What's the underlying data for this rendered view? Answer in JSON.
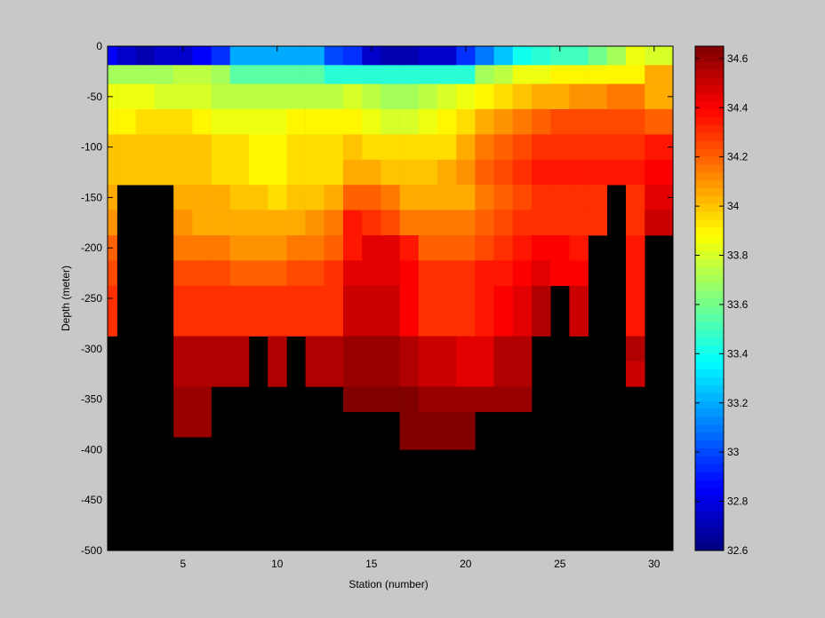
{
  "chart_data": {
    "type": "heatmap",
    "title": "",
    "xlabel": "Station (number)",
    "ylabel": "Depth (meter)",
    "xlim": [
      1,
      31
    ],
    "ylim": [
      -500,
      0
    ],
    "x_ticks": [
      "5",
      "10",
      "15",
      "20",
      "25",
      "30"
    ],
    "y_ticks": [
      "0",
      "-50",
      "-100",
      "-150",
      "-200",
      "-250",
      "-300",
      "-350",
      "-400",
      "-450",
      "-500"
    ],
    "colorbar": {
      "clim": [
        32.6,
        34.65
      ],
      "ticks": [
        "34.6",
        "34.4",
        "34.2",
        "34",
        "33.8",
        "33.6",
        "33.4",
        "33.2",
        "33",
        "32.8",
        "32.6"
      ],
      "colormap": "jet"
    },
    "grid": false,
    "stations": [
      1,
      2,
      3,
      4,
      5,
      6,
      7,
      8,
      9,
      10,
      11,
      12,
      13,
      14,
      15,
      16,
      17,
      18,
      19,
      20,
      21,
      22,
      23,
      24,
      25,
      26,
      27,
      28,
      29,
      30
    ],
    "depths": [
      -12.5,
      -25,
      -50,
      -75,
      -100,
      -125,
      -150,
      -175,
      -200,
      -225,
      -250,
      -275,
      -300,
      -325,
      -350,
      -375,
      -400
    ],
    "values": [
      [
        32.85,
        32.75,
        32.7,
        32.75,
        32.75,
        32.85,
        32.95,
        33.2,
        33.2,
        33.2,
        33.2,
        33.2,
        33.0,
        32.95,
        32.75,
        32.7,
        32.7,
        32.75,
        32.75,
        32.95,
        33.1,
        33.25,
        33.4,
        33.45,
        33.5,
        33.5,
        33.6,
        33.7,
        33.85,
        33.8
      ],
      [
        33.7,
        33.7,
        33.7,
        33.7,
        33.75,
        33.75,
        33.7,
        33.55,
        33.55,
        33.55,
        33.55,
        33.55,
        33.45,
        33.45,
        33.45,
        33.45,
        33.45,
        33.45,
        33.45,
        33.45,
        33.7,
        33.75,
        33.85,
        33.85,
        33.9,
        33.9,
        33.9,
        33.9,
        33.9,
        34.05
      ],
      [
        33.85,
        33.85,
        33.85,
        33.8,
        33.8,
        33.8,
        33.75,
        33.75,
        33.75,
        33.75,
        33.75,
        33.75,
        33.75,
        33.8,
        33.75,
        33.7,
        33.7,
        33.75,
        33.8,
        33.85,
        33.9,
        33.95,
        34.0,
        34.05,
        34.05,
        34.1,
        34.1,
        34.15,
        34.15,
        34.05
      ],
      [
        33.9,
        33.9,
        33.95,
        33.95,
        33.95,
        33.9,
        33.85,
        33.85,
        33.85,
        33.85,
        33.9,
        33.9,
        33.9,
        33.9,
        33.85,
        33.8,
        33.8,
        33.85,
        33.9,
        33.95,
        34.05,
        34.1,
        34.15,
        34.2,
        34.25,
        34.25,
        34.25,
        34.25,
        34.25,
        34.2
      ],
      [
        34.0,
        34.0,
        34.0,
        34.0,
        34.0,
        34.0,
        33.95,
        33.95,
        33.9,
        33.9,
        33.95,
        33.95,
        33.95,
        34.0,
        33.95,
        33.95,
        33.95,
        33.95,
        33.95,
        34.05,
        34.15,
        34.2,
        34.25,
        34.3,
        34.3,
        34.3,
        34.3,
        34.3,
        34.3,
        34.35
      ],
      [
        34.0,
        34.0,
        34.0,
        34.0,
        34.0,
        34.0,
        33.95,
        33.95,
        33.9,
        33.9,
        33.95,
        33.95,
        33.95,
        34.05,
        34.05,
        34.0,
        34.0,
        34.0,
        34.05,
        34.1,
        34.2,
        34.25,
        34.3,
        34.35,
        34.35,
        34.35,
        34.35,
        34.35,
        34.35,
        34.4
      ],
      [
        34.05,
        null,
        null,
        null,
        34.05,
        34.05,
        34.05,
        34.0,
        34.0,
        33.95,
        34.0,
        34.0,
        34.05,
        34.2,
        34.2,
        34.15,
        34.05,
        34.05,
        34.05,
        34.05,
        34.15,
        34.2,
        34.25,
        34.3,
        34.3,
        34.3,
        34.3,
        null,
        34.3,
        34.45
      ],
      [
        34.1,
        null,
        null,
        null,
        34.1,
        34.05,
        34.05,
        34.05,
        34.05,
        34.05,
        34.05,
        34.1,
        34.15,
        34.35,
        34.3,
        34.25,
        34.15,
        34.15,
        34.15,
        34.15,
        34.2,
        34.25,
        34.3,
        34.3,
        34.3,
        34.3,
        34.3,
        null,
        34.3,
        34.5
      ],
      [
        34.2,
        null,
        null,
        null,
        34.15,
        34.15,
        34.15,
        34.1,
        34.1,
        34.1,
        34.15,
        34.15,
        34.2,
        34.35,
        34.45,
        34.45,
        34.35,
        34.2,
        34.2,
        34.2,
        34.25,
        34.3,
        34.35,
        34.4,
        34.4,
        34.35,
        null,
        null,
        34.35,
        null
      ],
      [
        34.25,
        null,
        null,
        null,
        34.25,
        34.25,
        34.25,
        34.2,
        34.2,
        34.2,
        34.25,
        34.25,
        34.3,
        34.45,
        34.45,
        34.45,
        34.4,
        34.3,
        34.3,
        34.3,
        34.35,
        34.35,
        34.4,
        34.45,
        34.4,
        34.4,
        null,
        null,
        34.35,
        null
      ],
      [
        34.3,
        null,
        null,
        null,
        34.3,
        34.3,
        34.3,
        34.3,
        34.3,
        34.3,
        34.3,
        34.3,
        34.3,
        34.5,
        34.5,
        34.5,
        34.4,
        34.3,
        34.3,
        34.3,
        34.35,
        34.4,
        34.45,
        34.55,
        null,
        34.5,
        null,
        null,
        34.35,
        null
      ],
      [
        34.3,
        null,
        null,
        null,
        34.3,
        34.3,
        34.3,
        34.3,
        34.3,
        34.3,
        34.3,
        34.3,
        34.3,
        34.5,
        34.5,
        34.5,
        34.4,
        34.3,
        34.3,
        34.3,
        34.35,
        34.4,
        34.45,
        34.55,
        null,
        34.5,
        null,
        null,
        34.35,
        null
      ],
      [
        null,
        null,
        null,
        null,
        34.55,
        34.55,
        34.55,
        34.55,
        null,
        34.55,
        null,
        34.55,
        34.55,
        34.6,
        34.6,
        34.6,
        34.55,
        34.5,
        34.5,
        34.45,
        34.45,
        34.55,
        34.55,
        null,
        null,
        null,
        null,
        null,
        34.55,
        null
      ],
      [
        null,
        null,
        null,
        null,
        34.55,
        34.55,
        34.55,
        34.55,
        null,
        34.55,
        null,
        34.55,
        34.55,
        34.6,
        34.6,
        34.6,
        34.55,
        34.5,
        34.5,
        34.45,
        34.45,
        34.55,
        34.55,
        null,
        null,
        null,
        null,
        null,
        34.5,
        null
      ],
      [
        null,
        null,
        null,
        null,
        34.6,
        34.6,
        null,
        null,
        null,
        null,
        null,
        null,
        null,
        34.65,
        34.65,
        34.65,
        34.65,
        34.6,
        34.6,
        34.6,
        34.6,
        34.6,
        34.6,
        null,
        null,
        null,
        null,
        null,
        null,
        null
      ],
      [
        null,
        null,
        null,
        null,
        34.6,
        34.6,
        null,
        null,
        null,
        null,
        null,
        null,
        null,
        null,
        null,
        null,
        34.65,
        34.65,
        34.65,
        34.65,
        null,
        null,
        null,
        null,
        null,
        null,
        null,
        null,
        null,
        null
      ],
      [
        null,
        null,
        null,
        null,
        null,
        null,
        null,
        null,
        null,
        null,
        null,
        null,
        null,
        null,
        null,
        null,
        34.65,
        34.65,
        34.65,
        34.65,
        null,
        null,
        null,
        null,
        null,
        null,
        null,
        null,
        null,
        null
      ]
    ]
  }
}
